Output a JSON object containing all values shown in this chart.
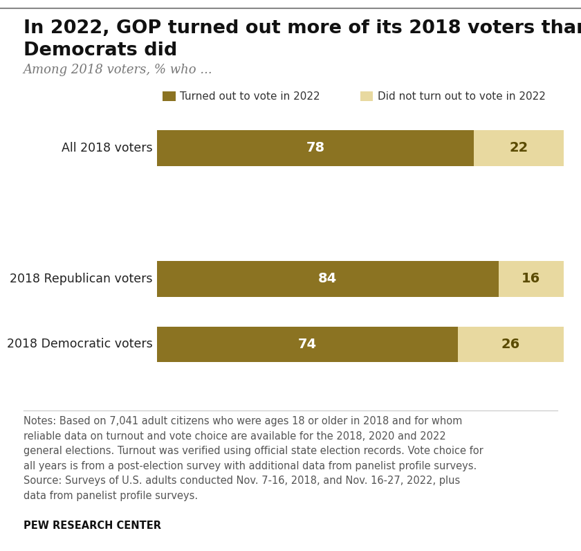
{
  "title_line1": "In 2022, GOP turned out more of its 2018 voters than",
  "title_line2": "Democrats did",
  "subtitle": "Among 2018 voters, % who ...",
  "categories": [
    "All 2018 voters",
    "2018 Republican voters",
    "2018 Democratic voters"
  ],
  "turned_out": [
    78,
    84,
    74
  ],
  "did_not": [
    22,
    16,
    26
  ],
  "color_turned_out": "#8B7322",
  "color_did_not": "#E8D9A0",
  "legend_label_1": "Turned out to vote in 2022",
  "legend_label_2": "Did not turn out to vote in 2022",
  "notes_line1": "Notes: Based on 7,041 adult citizens who were ages 18 or older in 2018 and for whom",
  "notes_line2": "reliable data on turnout and vote choice are available for the 2018, 2020 and 2022",
  "notes_line3": "general elections. Turnout was verified using official state election records. Vote choice for",
  "notes_line4": "all years is from a post-election survey with additional data from panelist profile surveys.",
  "notes_line5": "Source: Surveys of U.S. adults conducted Nov. 7-16, 2018, and Nov. 16-27, 2022, plus",
  "notes_line6": "data from panelist profile surveys.",
  "source_label": "PEW RESEARCH CENTER",
  "color_turned_out_text": "#ffffff",
  "color_did_not_text": "#5a4a00",
  "background_color": "#ffffff"
}
